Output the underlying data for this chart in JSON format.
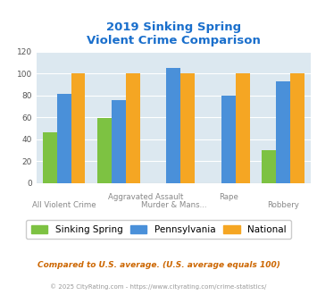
{
  "title_line1": "2019 Sinking Spring",
  "title_line2": "Violent Crime Comparison",
  "title_color": "#1a6fcc",
  "ss_vals": [
    46,
    59,
    0,
    0,
    30
  ],
  "pa_vals": [
    81,
    76,
    105,
    80,
    93
  ],
  "nat_vals": [
    100,
    100,
    100,
    100,
    100
  ],
  "bar_color_ss": "#7dc242",
  "bar_color_pa": "#4a90d9",
  "bar_color_nat": "#f5a623",
  "ylim": [
    0,
    120
  ],
  "yticks": [
    0,
    20,
    40,
    60,
    80,
    100,
    120
  ],
  "bg_color": "#dce8f0",
  "legend_label_ss": "Sinking Spring",
  "legend_label_pa": "Pennsylvania",
  "legend_label_nat": "National",
  "footnote1": "Compared to U.S. average. (U.S. average equals 100)",
  "footnote2": "© 2025 CityRating.com - https://www.cityrating.com/crime-statistics/",
  "footnote1_color": "#cc6600",
  "footnote2_color": "#999999"
}
